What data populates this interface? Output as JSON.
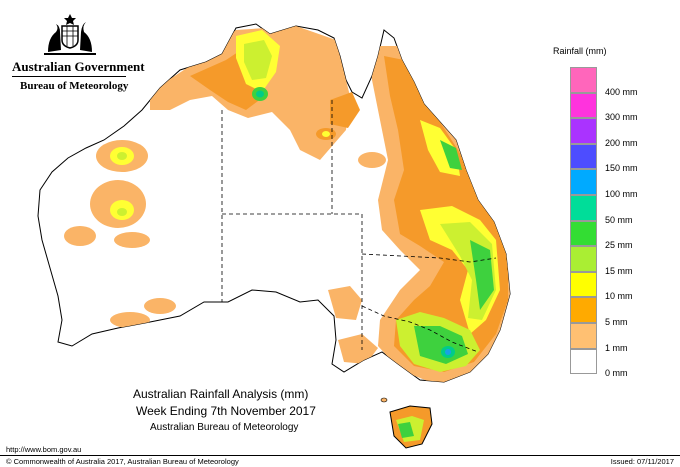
{
  "header": {
    "government": "Australian Government",
    "bureau": "Bureau of Meteorology",
    "crest_icon": "coat-of-arms-icon"
  },
  "legend": {
    "title": "Rainfall (mm)",
    "classes": [
      {
        "label": "",
        "color": "#ff66bb"
      },
      {
        "label": "400 mm",
        "color": "#ff33dd"
      },
      {
        "label": "300 mm",
        "color": "#aa33ff"
      },
      {
        "label": "200 mm",
        "color": "#4d4dff"
      },
      {
        "label": "150 mm",
        "color": "#00aaff"
      },
      {
        "label": "100 mm",
        "color": "#00dd99"
      },
      {
        "label": "50 mm",
        "color": "#33dd33"
      },
      {
        "label": "25 mm",
        "color": "#aaee33"
      },
      {
        "label": "15 mm",
        "color": "#ffff00"
      },
      {
        "label": "10 mm",
        "color": "#ffaa00"
      },
      {
        "label": "5 mm",
        "color": "#ffc072"
      },
      {
        "label": "1 mm",
        "color": "#ffffff"
      },
      {
        "label": "0 mm",
        "color": ""
      }
    ]
  },
  "caption": {
    "line1": "Australian Rainfall Analysis (mm)",
    "line2": "Week Ending 7th November 2017",
    "line3": "Australian Bureau of Meteorology"
  },
  "footer": {
    "url": "http://www.bom.gov.au",
    "copyright": "© Commonwealth of Australia 2017, Australian Bureau of Meteorology",
    "issued": "Issued: 07/11/2017"
  },
  "colors": {
    "light_orange": "#fab467",
    "orange": "#f59a2a",
    "yellow": "#ffff33",
    "yellow_green": "#ccf030",
    "green": "#3ed13e",
    "teal": "#00cc88",
    "blue": "#1aa0e6",
    "border": "#000000"
  }
}
